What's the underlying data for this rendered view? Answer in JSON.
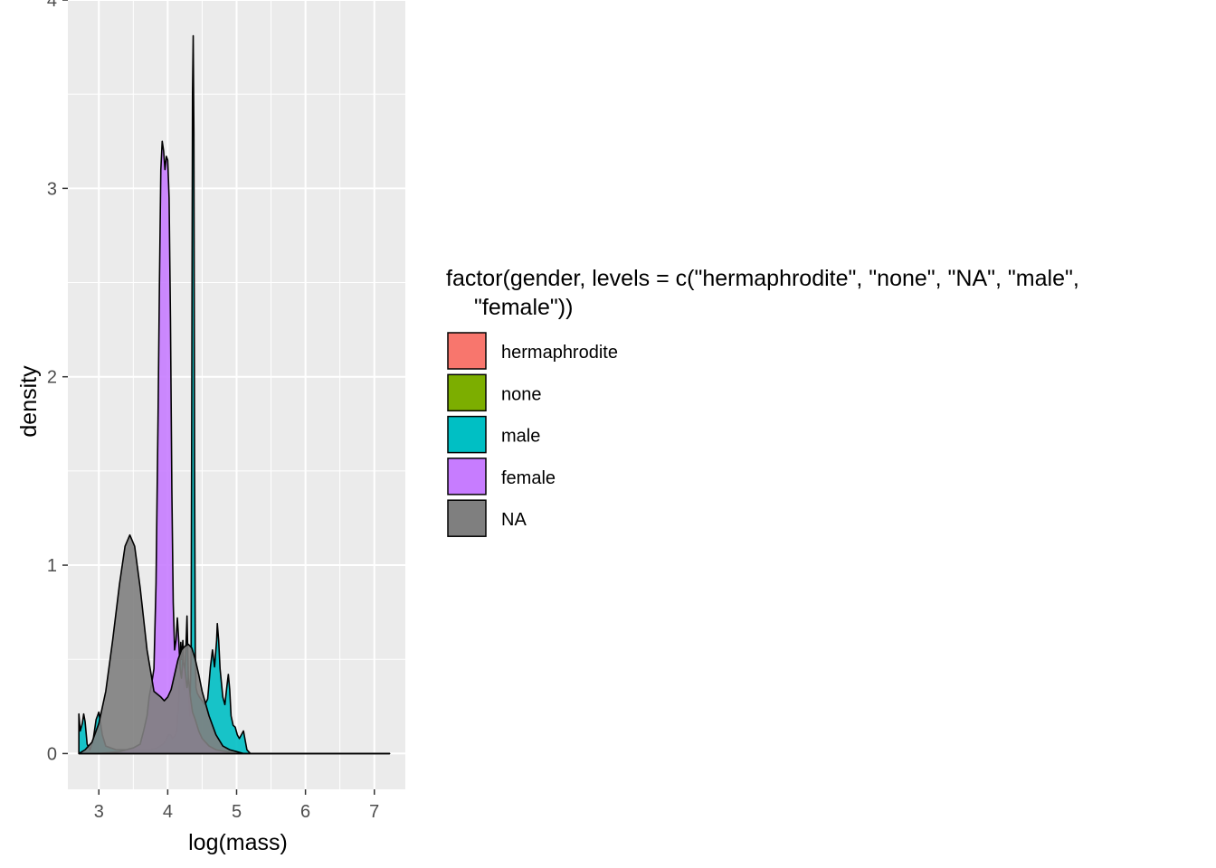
{
  "chart_data": {
    "type": "area",
    "subtype": "density",
    "xlabel": "log(mass)",
    "ylabel": "density",
    "xlim": [
      2.55,
      7.45
    ],
    "ylim": [
      -0.19,
      4.0
    ],
    "x_ticks": [
      3,
      4,
      5,
      6,
      7
    ],
    "y_ticks": [
      0,
      1,
      2,
      3,
      4
    ],
    "grid": true,
    "legend": {
      "position": "right",
      "title_line1": "factor(gender, levels = c(\"hermaphrodite\", \"none\", \"NA\", \"male\",",
      "title_line2": "\"female\"))",
      "entries": [
        {
          "label": "hermaphrodite",
          "color": "#F8766D"
        },
        {
          "label": "none",
          "color": "#7CAE00"
        },
        {
          "label": "male",
          "color": "#00BFC4"
        },
        {
          "label": "female",
          "color": "#C77CFF"
        },
        {
          "label": "NA",
          "color": "#7F7F7F"
        }
      ]
    },
    "series": [
      {
        "name": "male",
        "color": "#00BFC4",
        "x": [
          2.71,
          2.73,
          2.76,
          2.78,
          2.8,
          2.83,
          2.87,
          2.92,
          2.96,
          3.0,
          3.05,
          3.1,
          3.17,
          3.25,
          3.35,
          3.45,
          3.55,
          3.65,
          3.75,
          3.85,
          3.93,
          3.97,
          4.01,
          4.04,
          4.07,
          4.1,
          4.13,
          4.16,
          4.19,
          4.2,
          4.22,
          4.24,
          4.26,
          4.28,
          4.3,
          4.32,
          4.34,
          4.36,
          4.37,
          4.38,
          4.39,
          4.4,
          4.41,
          4.43,
          4.46,
          4.5,
          4.54,
          4.58,
          4.62,
          4.65,
          4.68,
          4.71,
          4.72,
          4.74,
          4.76,
          4.8,
          4.83,
          4.86,
          4.88,
          4.9,
          4.92,
          4.95,
          4.98,
          5.01,
          5.04,
          5.07,
          5.1,
          5.12,
          5.15,
          5.2,
          5.5,
          6.0,
          6.5,
          7.0,
          7.22
        ],
        "y": [
          0.21,
          0.12,
          0.16,
          0.21,
          0.17,
          0.05,
          0.02,
          0.08,
          0.18,
          0.22,
          0.1,
          0.04,
          0.03,
          0.02,
          0.02,
          0.02,
          0.02,
          0.02,
          0.02,
          0.03,
          0.05,
          0.07,
          0.1,
          0.1,
          0.08,
          0.09,
          0.12,
          0.28,
          0.59,
          0.5,
          0.6,
          0.34,
          0.52,
          0.73,
          0.38,
          0.2,
          0.55,
          3.5,
          3.81,
          3.3,
          1.5,
          0.55,
          0.35,
          0.32,
          0.3,
          0.28,
          0.26,
          0.29,
          0.46,
          0.55,
          0.46,
          0.6,
          0.69,
          0.6,
          0.45,
          0.3,
          0.26,
          0.36,
          0.42,
          0.34,
          0.2,
          0.15,
          0.14,
          0.1,
          0.08,
          0.1,
          0.12,
          0.08,
          0.02,
          0.0,
          0.0,
          0.0,
          0.0,
          0.0,
          0.0
        ]
      },
      {
        "name": "female",
        "color": "#C77CFF",
        "x": [
          2.71,
          3.0,
          3.3,
          3.5,
          3.6,
          3.65,
          3.7,
          3.73,
          3.77,
          3.8,
          3.83,
          3.86,
          3.88,
          3.9,
          3.92,
          3.94,
          3.96,
          3.98,
          4.0,
          4.02,
          4.04,
          4.06,
          4.08,
          4.1,
          4.12,
          4.14,
          4.16,
          4.18,
          4.2,
          4.22,
          4.25,
          4.28,
          4.3,
          4.33,
          4.36,
          4.4,
          4.45,
          4.5,
          4.6,
          4.7,
          5.0,
          5.5,
          6.0,
          7.0,
          7.22
        ],
        "y": [
          0.0,
          0.0,
          0.01,
          0.03,
          0.05,
          0.12,
          0.2,
          0.3,
          0.38,
          0.45,
          0.9,
          1.8,
          2.5,
          3.1,
          3.25,
          3.2,
          3.1,
          3.17,
          3.15,
          2.95,
          2.3,
          1.4,
          0.8,
          0.55,
          0.6,
          0.72,
          0.6,
          0.45,
          0.4,
          0.5,
          0.45,
          0.35,
          0.4,
          0.3,
          0.22,
          0.18,
          0.12,
          0.08,
          0.04,
          0.02,
          0.0,
          0.0,
          0.0,
          0.0,
          0.0
        ]
      },
      {
        "name": "NA",
        "color": "#7F7F7F",
        "x": [
          2.71,
          2.8,
          2.9,
          3.0,
          3.1,
          3.2,
          3.3,
          3.38,
          3.45,
          3.52,
          3.6,
          3.7,
          3.8,
          3.9,
          3.95,
          4.0,
          4.05,
          4.1,
          4.15,
          4.2,
          4.25,
          4.3,
          4.35,
          4.4,
          4.45,
          4.5,
          4.6,
          4.7,
          4.8,
          4.9,
          5.0,
          5.1,
          5.2,
          5.5,
          6.0,
          6.5,
          7.0,
          7.22
        ],
        "y": [
          0.0,
          0.02,
          0.06,
          0.16,
          0.33,
          0.6,
          0.9,
          1.1,
          1.16,
          1.1,
          0.88,
          0.55,
          0.33,
          0.3,
          0.28,
          0.3,
          0.34,
          0.42,
          0.5,
          0.55,
          0.57,
          0.58,
          0.56,
          0.5,
          0.42,
          0.33,
          0.2,
          0.1,
          0.04,
          0.02,
          0.01,
          0.0,
          0.0,
          0.0,
          0.0,
          0.0,
          0.0,
          0.0
        ]
      }
    ]
  }
}
